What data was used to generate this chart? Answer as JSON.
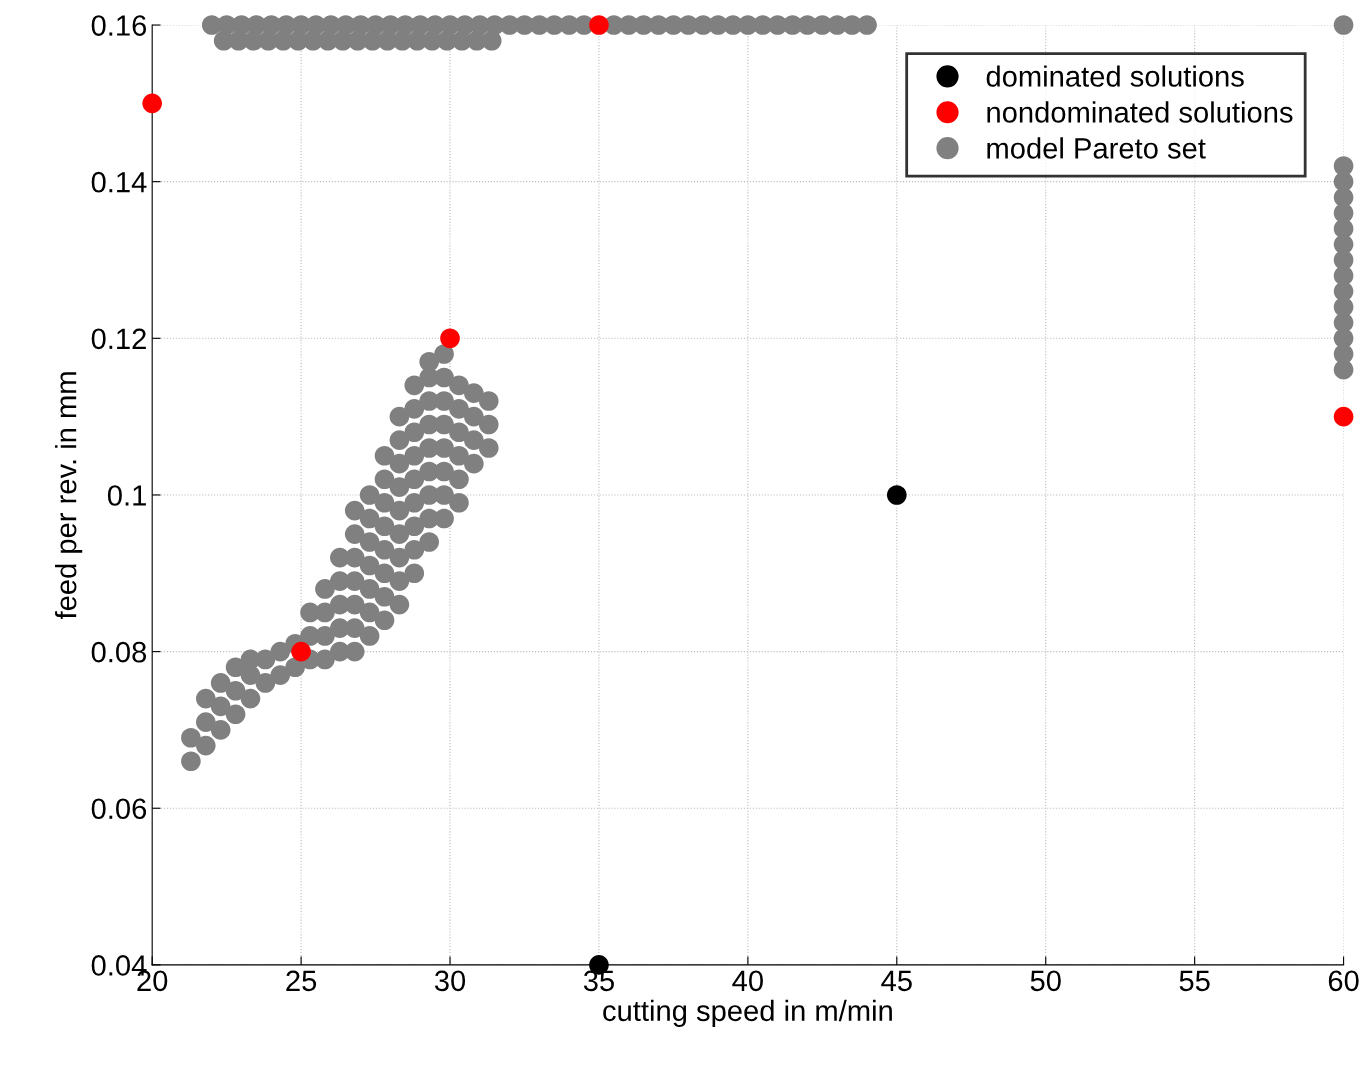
{
  "chart_data": {
    "type": "scatter",
    "xlabel": "cutting speed in m/min",
    "ylabel": "feed per rev. in mm",
    "xlim": [
      20,
      60
    ],
    "ylim": [
      0.04,
      0.16
    ],
    "xticks": [
      20,
      25,
      30,
      35,
      40,
      45,
      50,
      55,
      60
    ],
    "yticks": [
      0.04,
      0.06,
      0.08,
      0.1,
      0.12,
      0.14,
      0.16
    ],
    "grid": true,
    "legend": "top right",
    "marker": "circle",
    "series": [
      {
        "name": "dominated solutions",
        "color": "#000000",
        "x": [
          35,
          45
        ],
        "values": [
          0.04,
          0.1
        ]
      },
      {
        "name": "nondominated solutions",
        "color": "#ff0000",
        "x": [
          20,
          25,
          30,
          35,
          60
        ],
        "values": [
          0.15,
          0.08,
          0.12,
          0.16,
          0.11
        ]
      },
      {
        "name": "model Pareto set",
        "color": "#808080",
        "x": [
          22.0,
          22.5,
          23.0,
          23.5,
          24.0,
          24.5,
          25.0,
          25.5,
          26.0,
          26.5,
          27.0,
          27.5,
          28.0,
          28.5,
          29.0,
          29.5,
          30.0,
          30.5,
          31.0,
          31.5,
          32.0,
          32.5,
          33.0,
          33.5,
          34.0,
          34.5,
          35.0,
          35.5,
          36.0,
          36.5,
          37.0,
          37.5,
          38.0,
          38.5,
          39.0,
          39.5,
          40.0,
          40.5,
          41.0,
          41.5,
          42.0,
          42.5,
          43.0,
          43.5,
          44.0,
          22.4,
          22.9,
          23.4,
          23.9,
          24.4,
          24.9,
          25.4,
          25.9,
          26.4,
          26.9,
          27.4,
          27.9,
          28.4,
          28.9,
          29.4,
          29.9,
          30.4,
          30.9,
          31.4,
          60,
          60,
          60,
          60,
          60,
          60,
          60,
          60,
          60,
          60,
          60,
          60,
          60,
          60,
          60,
          21.3,
          21.3,
          21.8,
          21.8,
          21.8,
          22.3,
          22.3,
          22.3,
          22.8,
          22.8,
          22.8,
          23.3,
          23.3,
          23.3,
          23.8,
          23.8,
          24.3,
          24.3,
          24.8,
          24.8,
          25.3,
          25.3,
          25.3,
          25.8,
          25.8,
          25.8,
          25.8,
          26.3,
          26.3,
          26.3,
          26.3,
          26.3,
          26.8,
          26.8,
          26.8,
          26.8,
          26.8,
          26.8,
          26.8,
          27.3,
          27.3,
          27.3,
          27.3,
          27.3,
          27.3,
          27.3,
          27.8,
          27.8,
          27.8,
          27.8,
          27.8,
          27.8,
          27.8,
          27.8,
          28.3,
          28.3,
          28.3,
          28.3,
          28.3,
          28.3,
          28.3,
          28.3,
          28.3,
          28.8,
          28.8,
          28.8,
          28.8,
          28.8,
          28.8,
          28.8,
          28.8,
          28.8,
          29.3,
          29.3,
          29.3,
          29.3,
          29.3,
          29.3,
          29.3,
          29.3,
          29.3,
          29.8,
          29.8,
          29.8,
          29.8,
          29.8,
          29.8,
          29.8,
          29.8,
          30.3,
          30.3,
          30.3,
          30.3,
          30.3,
          30.3,
          30.8,
          30.8,
          30.8,
          30.8,
          31.3,
          31.3,
          31.3
        ],
        "values": [
          0.16,
          0.16,
          0.16,
          0.16,
          0.16,
          0.16,
          0.16,
          0.16,
          0.16,
          0.16,
          0.16,
          0.16,
          0.16,
          0.16,
          0.16,
          0.16,
          0.16,
          0.16,
          0.16,
          0.16,
          0.16,
          0.16,
          0.16,
          0.16,
          0.16,
          0.16,
          null,
          0.16,
          0.16,
          0.16,
          0.16,
          0.16,
          0.16,
          0.16,
          0.16,
          0.16,
          0.16,
          0.16,
          0.16,
          0.16,
          0.16,
          0.16,
          0.16,
          0.16,
          0.16,
          0.158,
          0.158,
          0.158,
          0.158,
          0.158,
          0.158,
          0.158,
          0.158,
          0.158,
          0.158,
          0.158,
          0.158,
          0.158,
          0.158,
          0.158,
          0.158,
          0.158,
          0.158,
          0.158,
          0.16,
          0.142,
          0.14,
          0.138,
          0.136,
          0.134,
          0.132,
          0.13,
          0.128,
          0.126,
          0.124,
          0.122,
          0.12,
          0.118,
          0.116,
          0.066,
          0.069,
          0.068,
          0.071,
          0.074,
          0.07,
          0.073,
          0.076,
          0.072,
          0.075,
          0.078,
          0.074,
          0.077,
          0.079,
          0.076,
          0.079,
          0.077,
          0.08,
          0.078,
          0.081,
          0.079,
          0.082,
          0.085,
          0.079,
          0.082,
          0.085,
          0.088,
          0.08,
          0.083,
          0.086,
          0.089,
          0.092,
          0.08,
          0.083,
          0.086,
          0.089,
          0.092,
          0.095,
          0.098,
          0.082,
          0.085,
          0.088,
          0.091,
          0.094,
          0.097,
          0.1,
          0.084,
          0.087,
          0.09,
          0.093,
          0.096,
          0.099,
          0.102,
          0.105,
          0.086,
          0.089,
          0.092,
          0.095,
          0.098,
          0.101,
          0.104,
          0.107,
          0.11,
          0.09,
          0.093,
          0.096,
          0.099,
          0.102,
          0.105,
          0.108,
          0.111,
          0.114,
          0.094,
          0.097,
          0.1,
          0.103,
          0.106,
          0.109,
          0.112,
          0.115,
          0.117,
          0.097,
          0.1,
          0.103,
          0.106,
          0.109,
          0.112,
          0.115,
          0.118,
          0.099,
          0.102,
          0.105,
          0.108,
          0.111,
          0.114,
          0.104,
          0.107,
          0.11,
          0.113,
          0.106,
          0.109,
          0.112
        ]
      }
    ]
  }
}
